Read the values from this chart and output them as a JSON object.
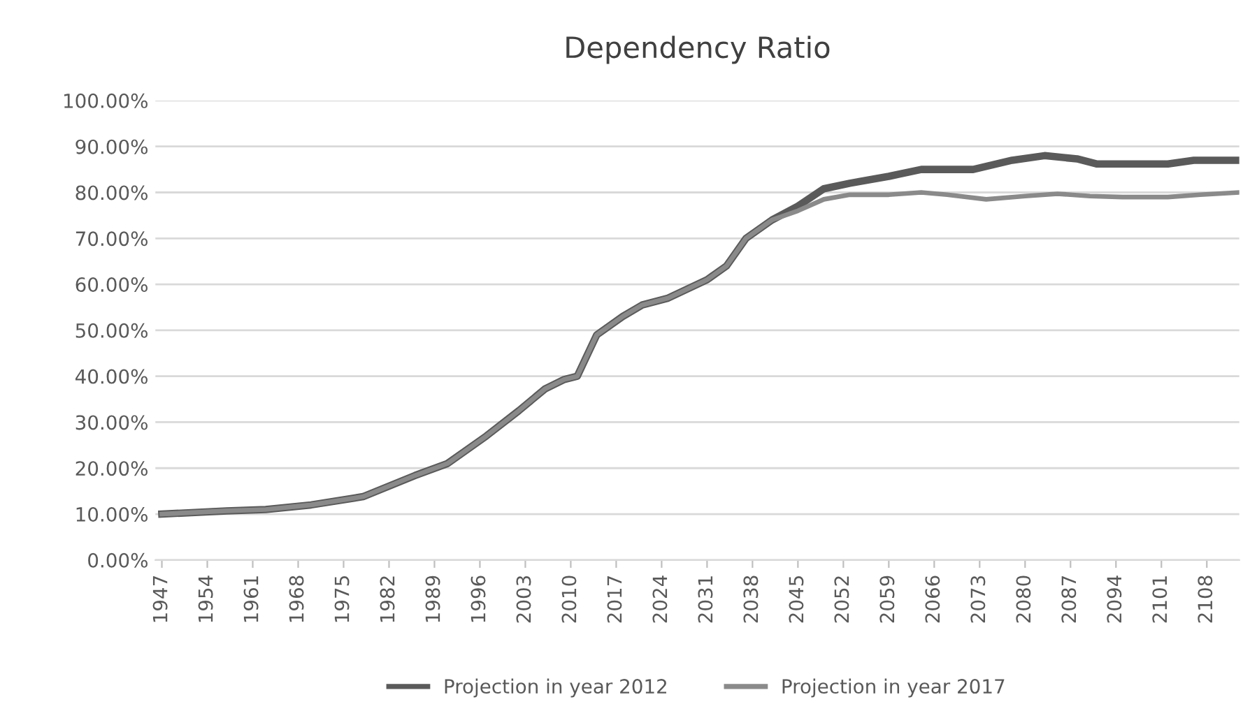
{
  "chart_data": {
    "type": "line",
    "title": "Dependency Ratio",
    "xlim": [
      1946,
      2113
    ],
    "xticks": [
      1947,
      1954,
      1961,
      1968,
      1975,
      1982,
      1989,
      1996,
      2003,
      2010,
      2017,
      2024,
      2031,
      2038,
      2045,
      2052,
      2059,
      2066,
      2073,
      2080,
      2087,
      2094,
      2101,
      2108
    ],
    "ylim": [
      0,
      100
    ],
    "yticks": [
      {
        "value": 0,
        "label": "0.00%"
      },
      {
        "value": 10,
        "label": "10.00%"
      },
      {
        "value": 20,
        "label": "20.00%"
      },
      {
        "value": 30,
        "label": "30.00%"
      },
      {
        "value": 40,
        "label": "40.00%"
      },
      {
        "value": 50,
        "label": "50.00%"
      },
      {
        "value": 60,
        "label": "60.00%"
      },
      {
        "value": 70,
        "label": "70.00%"
      },
      {
        "value": 80,
        "label": "80.00%"
      },
      {
        "value": 90,
        "label": "90.00%"
      },
      {
        "value": 100,
        "label": "100.00%"
      }
    ],
    "grid": "y",
    "legend": "bottom",
    "marker": "none",
    "line_style": "solid",
    "series": [
      {
        "name": "Projection in year 2012",
        "color": "#5a5a5a",
        "x": [
          1947,
          1957,
          1963,
          1970,
          1978,
          1986,
          1991,
          1997,
          2002,
          2006,
          2009,
          2011,
          2014,
          2018,
          2021,
          2025,
          2031,
          2034,
          2037,
          2041,
          2045,
          2049,
          2053,
          2059,
          2064,
          2072,
          2078,
          2083,
          2088,
          2091,
          2096,
          2102,
          2106,
          2113
        ],
        "values": [
          10,
          10.7,
          11,
          12,
          13.8,
          18.4,
          21,
          27,
          32.5,
          37.2,
          39.3,
          40,
          49,
          53,
          55.5,
          57,
          61,
          64,
          70,
          74,
          77,
          80.8,
          82,
          83.5,
          85,
          85,
          87,
          88,
          87.3,
          86.2,
          86.2,
          86.2,
          87,
          87
        ]
      },
      {
        "name": "Projection in year 2017",
        "color": "#8a8a8a",
        "x": [
          1947,
          1957,
          1963,
          1970,
          1978,
          1986,
          1991,
          1997,
          2002,
          2006,
          2009,
          2011,
          2014,
          2018,
          2021,
          2025,
          2031,
          2034,
          2037,
          2041,
          2045,
          2049,
          2053,
          2059,
          2064,
          2068,
          2074,
          2080,
          2085,
          2090,
          2095,
          2102,
          2107,
          2113
        ],
        "values": [
          10,
          10.7,
          11,
          12,
          13.8,
          18.4,
          21,
          27,
          32.5,
          37.2,
          39.3,
          40,
          49,
          53,
          55.5,
          57,
          61,
          64,
          70,
          74,
          76,
          78.5,
          79.5,
          79.5,
          80,
          79.5,
          78.5,
          79.2,
          79.7,
          79.2,
          79,
          79,
          79.5,
          80
        ]
      }
    ]
  }
}
